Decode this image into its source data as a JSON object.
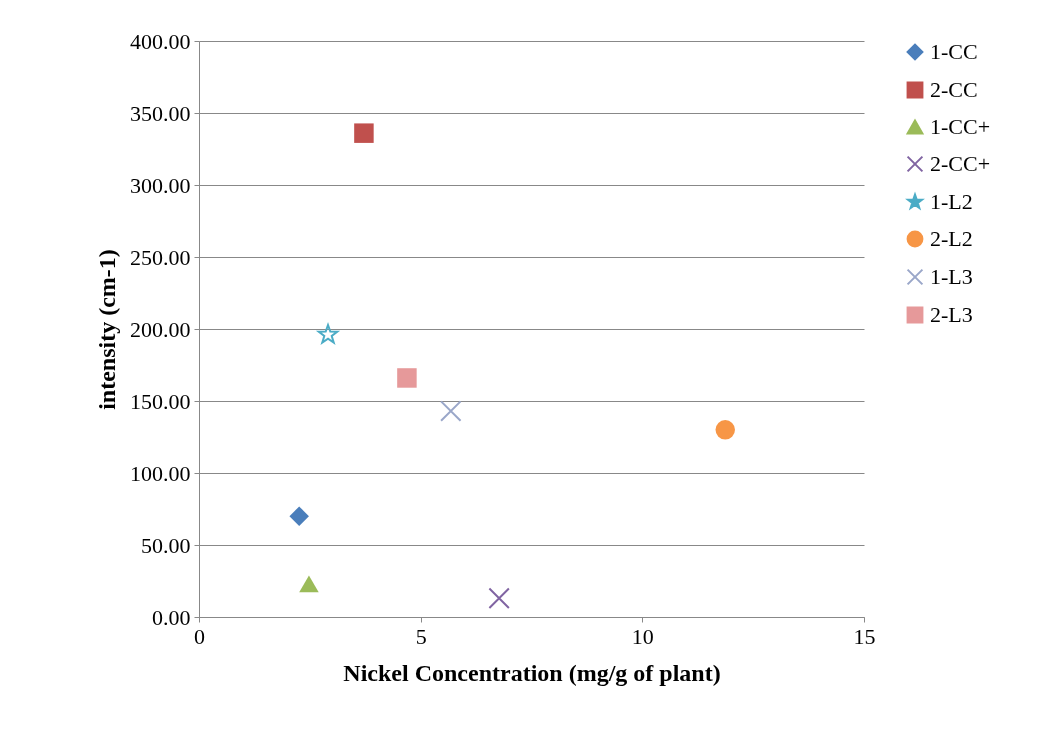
{
  "chart_data": {
    "type": "scatter",
    "xlabel": "Nickel Concentration (mg/g of plant)",
    "ylabel": "intensity (cm-1)",
    "xlim": [
      0,
      15
    ],
    "xticks": [
      0,
      5,
      10,
      15
    ],
    "ylim": [
      0,
      400
    ],
    "yticks": [
      {
        "value": 0,
        "label": "0.00"
      },
      {
        "value": 50,
        "label": "50.00"
      },
      {
        "value": 100,
        "label": "100.00"
      },
      {
        "value": 150,
        "label": "150.00"
      },
      {
        "value": 200,
        "label": "200.00"
      },
      {
        "value": 250,
        "label": "250.00"
      },
      {
        "value": 300,
        "label": "300.00"
      },
      {
        "value": 350,
        "label": "350.00"
      },
      {
        "value": 400,
        "label": "400.00"
      }
    ],
    "grid": "y",
    "legend": "right",
    "series": [
      {
        "name": "1-CC",
        "color": "#4a7ebb",
        "marker": "diamond",
        "x": [
          2.26
        ],
        "values": [
          70
        ]
      },
      {
        "name": "2-CC",
        "color": "#c0504d",
        "marker": "square",
        "x": [
          3.72
        ],
        "values": [
          336
        ]
      },
      {
        "name": "1-CC+",
        "color": "#9bbb59",
        "marker": "triangle",
        "x": [
          2.48
        ],
        "values": [
          23
        ]
      },
      {
        "name": "2-CC+",
        "color": "#8064a2",
        "marker": "cross",
        "x": [
          6.77
        ],
        "values": [
          13
        ]
      },
      {
        "name": "1-L2",
        "color": "#4bacc6",
        "marker": "star",
        "x": [
          2.91
        ],
        "values": [
          196
        ]
      },
      {
        "name": "2-L2",
        "color": "#f79646",
        "marker": "circle",
        "x": [
          11.87
        ],
        "values": [
          130
        ]
      },
      {
        "name": "1-L3",
        "color": "#9aa7c9",
        "marker": "cross",
        "x": [
          5.68
        ],
        "values": [
          143
        ]
      },
      {
        "name": "2-L3",
        "color": "#e6999a",
        "marker": "square",
        "x": [
          4.69
        ],
        "values": [
          166
        ]
      }
    ]
  }
}
